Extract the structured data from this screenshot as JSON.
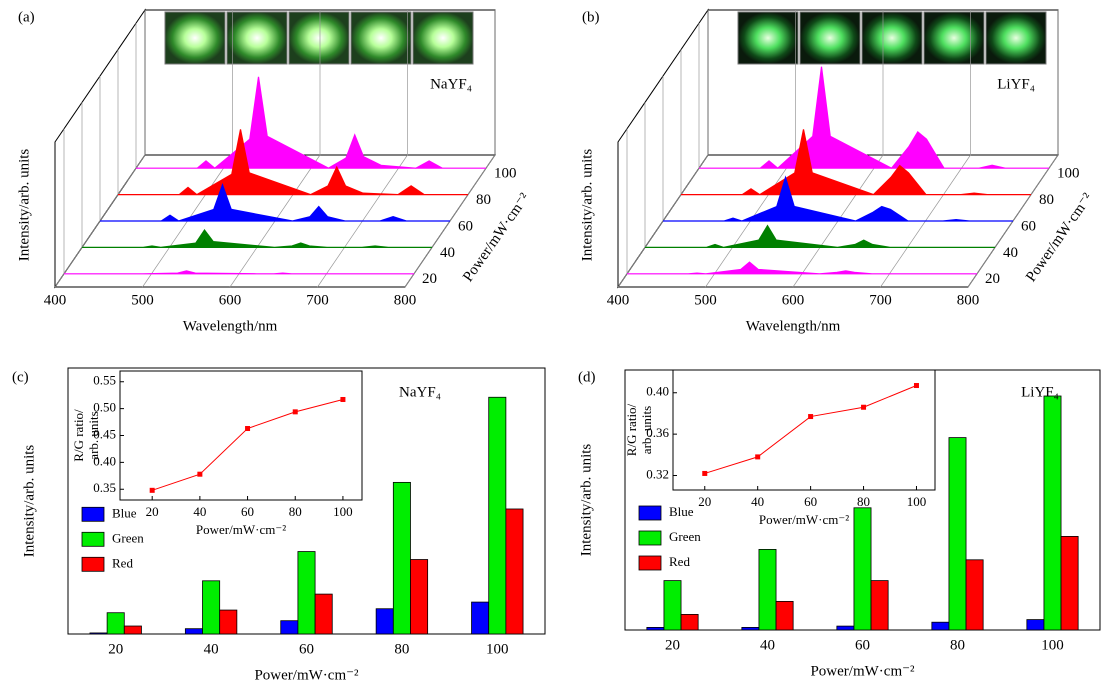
{
  "chart_data": [
    {
      "type": "waterfall",
      "label": "(a)",
      "material": "NaYF₄",
      "xlabel": "Wavelength/nm",
      "ylabel": "Intensity/arb. units",
      "zlabel": "Power/mW·cm⁻²",
      "x": [
        400,
        470,
        480,
        490,
        530,
        540,
        550,
        620,
        640,
        650,
        660,
        680,
        720,
        735,
        750,
        800
      ],
      "xlim": [
        400,
        800
      ],
      "xticks": [
        400,
        500,
        600,
        700,
        800
      ],
      "ylim": [
        0,
        100
      ],
      "zlim": [
        10,
        110
      ],
      "zticks": [
        20,
        40,
        60,
        80,
        100
      ],
      "series": [
        {
          "z": 20,
          "color": "#ff00ff",
          "values": [
            0,
            0,
            0,
            0,
            0.5,
            2,
            0.5,
            0,
            0,
            0.5,
            0,
            0,
            0,
            0,
            0,
            0
          ]
        },
        {
          "z": 40,
          "color": "#008000",
          "values": [
            0,
            0,
            1,
            0,
            3,
            12,
            4,
            0,
            1,
            3,
            1,
            0,
            0,
            1,
            0,
            0
          ]
        },
        {
          "z": 60,
          "color": "#0000ff",
          "values": [
            0,
            0,
            4,
            0,
            8,
            25,
            8,
            0,
            3,
            10,
            3,
            0,
            0,
            3,
            0,
            0
          ]
        },
        {
          "z": 80,
          "color": "#ff0000",
          "values": [
            0,
            0,
            5,
            0,
            14,
            45,
            15,
            0,
            6,
            19,
            6,
            1,
            0,
            6,
            0,
            0
          ]
        },
        {
          "z": 100,
          "color": "#ff00ff",
          "values": [
            0,
            0,
            5,
            0,
            20,
            63,
            22,
            0,
            7,
            23,
            8,
            2,
            0,
            5,
            0,
            0
          ]
        }
      ]
    },
    {
      "type": "waterfall",
      "label": "(b)",
      "material": "LiYF₄",
      "xlabel": "Wavelength/nm",
      "ylabel": "Intensity/arb. units",
      "zlabel": "Power/mW·cm⁻²",
      "x": [
        400,
        470,
        480,
        490,
        530,
        540,
        550,
        620,
        640,
        650,
        660,
        680,
        720,
        735,
        750,
        800
      ],
      "xlim": [
        400,
        800
      ],
      "xticks": [
        400,
        500,
        600,
        700,
        800
      ],
      "ylim": [
        0,
        100
      ],
      "zlim": [
        10,
        110
      ],
      "zticks": [
        20,
        40,
        60,
        80,
        100
      ],
      "series": [
        {
          "z": 20,
          "color": "#ff00ff",
          "values": [
            0,
            0,
            0.5,
            0,
            3,
            8,
            3,
            0,
            1,
            2,
            1,
            0,
            0,
            0,
            0,
            0
          ]
        },
        {
          "z": 40,
          "color": "#008000",
          "values": [
            0,
            0,
            2,
            0,
            5,
            15,
            5,
            0,
            2,
            5,
            2,
            0,
            0,
            0,
            0,
            0
          ]
        },
        {
          "z": 60,
          "color": "#0000ff",
          "values": [
            0,
            0,
            2,
            0,
            10,
            30,
            10,
            0,
            6,
            10,
            8,
            0,
            0,
            1,
            0,
            0
          ]
        },
        {
          "z": 80,
          "color": "#ff0000",
          "values": [
            0,
            0,
            4,
            0,
            15,
            45,
            15,
            0,
            12,
            20,
            15,
            0,
            0,
            1,
            0,
            0
          ]
        },
        {
          "z": 100,
          "color": "#ff00ff",
          "values": [
            0,
            0,
            5,
            0,
            22,
            70,
            22,
            0,
            15,
            25,
            20,
            0,
            0,
            2,
            0,
            0
          ]
        }
      ]
    },
    {
      "type": "bar",
      "label": "(c)",
      "material": "NaYF₄",
      "xlabel": "Power/mW·cm⁻²",
      "ylabel": "Intensity/arb. units",
      "categories": [
        "20",
        "40",
        "60",
        "80",
        "100"
      ],
      "ylim": [
        0,
        100
      ],
      "legend": "center left",
      "series": [
        {
          "name": "Blue",
          "color": "#0000ff",
          "values": [
            0.4,
            2,
            5,
            9.5,
            12
          ]
        },
        {
          "name": "Green",
          "color": "#00ee00",
          "values": [
            8,
            20,
            31,
            57,
            89
          ]
        },
        {
          "name": "Red",
          "color": "#ff0000",
          "values": [
            3,
            9,
            15,
            28,
            47
          ]
        }
      ],
      "inset": {
        "type": "line",
        "color": "#ff0000",
        "x": [
          20,
          40,
          60,
          80,
          100
        ],
        "values": [
          0.348,
          0.378,
          0.463,
          0.494,
          0.517
        ],
        "xlim": [
          6.5,
          108
        ],
        "xticks": [
          20,
          40,
          60,
          80,
          100
        ],
        "ylim": [
          0.33,
          0.57
        ],
        "yticks": [
          0.35,
          {
            "value": 0.4,
            "label": "0.40"
          },
          0.45,
          {
            "value": 0.5,
            "label": "0.50"
          },
          0.55
        ],
        "xlabel": "Power/mW·cm⁻²",
        "ylabel": [
          "R/G ratio/",
          "arb. units"
        ]
      }
    },
    {
      "type": "bar",
      "label": "(d)",
      "material": "LiYF₄",
      "xlabel": "Power/mW·cm⁻²",
      "ylabel": "Intensity/arb. units",
      "categories": [
        "20",
        "40",
        "60",
        "80",
        "100"
      ],
      "ylim": [
        0,
        100
      ],
      "legend": "center left",
      "series": [
        {
          "name": "Blue",
          "color": "#0000ff",
          "values": [
            1,
            1,
            1.5,
            3,
            4
          ]
        },
        {
          "name": "Green",
          "color": "#00ee00",
          "values": [
            19,
            31,
            47,
            74,
            90
          ]
        },
        {
          "name": "Red",
          "color": "#ff0000",
          "values": [
            6,
            11,
            19,
            27,
            36
          ]
        }
      ],
      "inset": {
        "type": "line",
        "color": "#ff0000",
        "x": [
          20,
          40,
          60,
          80,
          100
        ],
        "values": [
          0.322,
          0.338,
          0.377,
          0.386,
          0.407
        ],
        "xlim": [
          8,
          107
        ],
        "xticks": [
          20,
          40,
          60,
          80,
          100
        ],
        "ylim": [
          0.306,
          0.422
        ],
        "yticks": [
          0.32,
          0.36,
          {
            "value": 0.4,
            "label": "0.40"
          }
        ],
        "xlabel": "Power/mW·cm⁻²",
        "ylabel": [
          "R/G ratio/",
          "arb. units"
        ]
      }
    }
  ]
}
